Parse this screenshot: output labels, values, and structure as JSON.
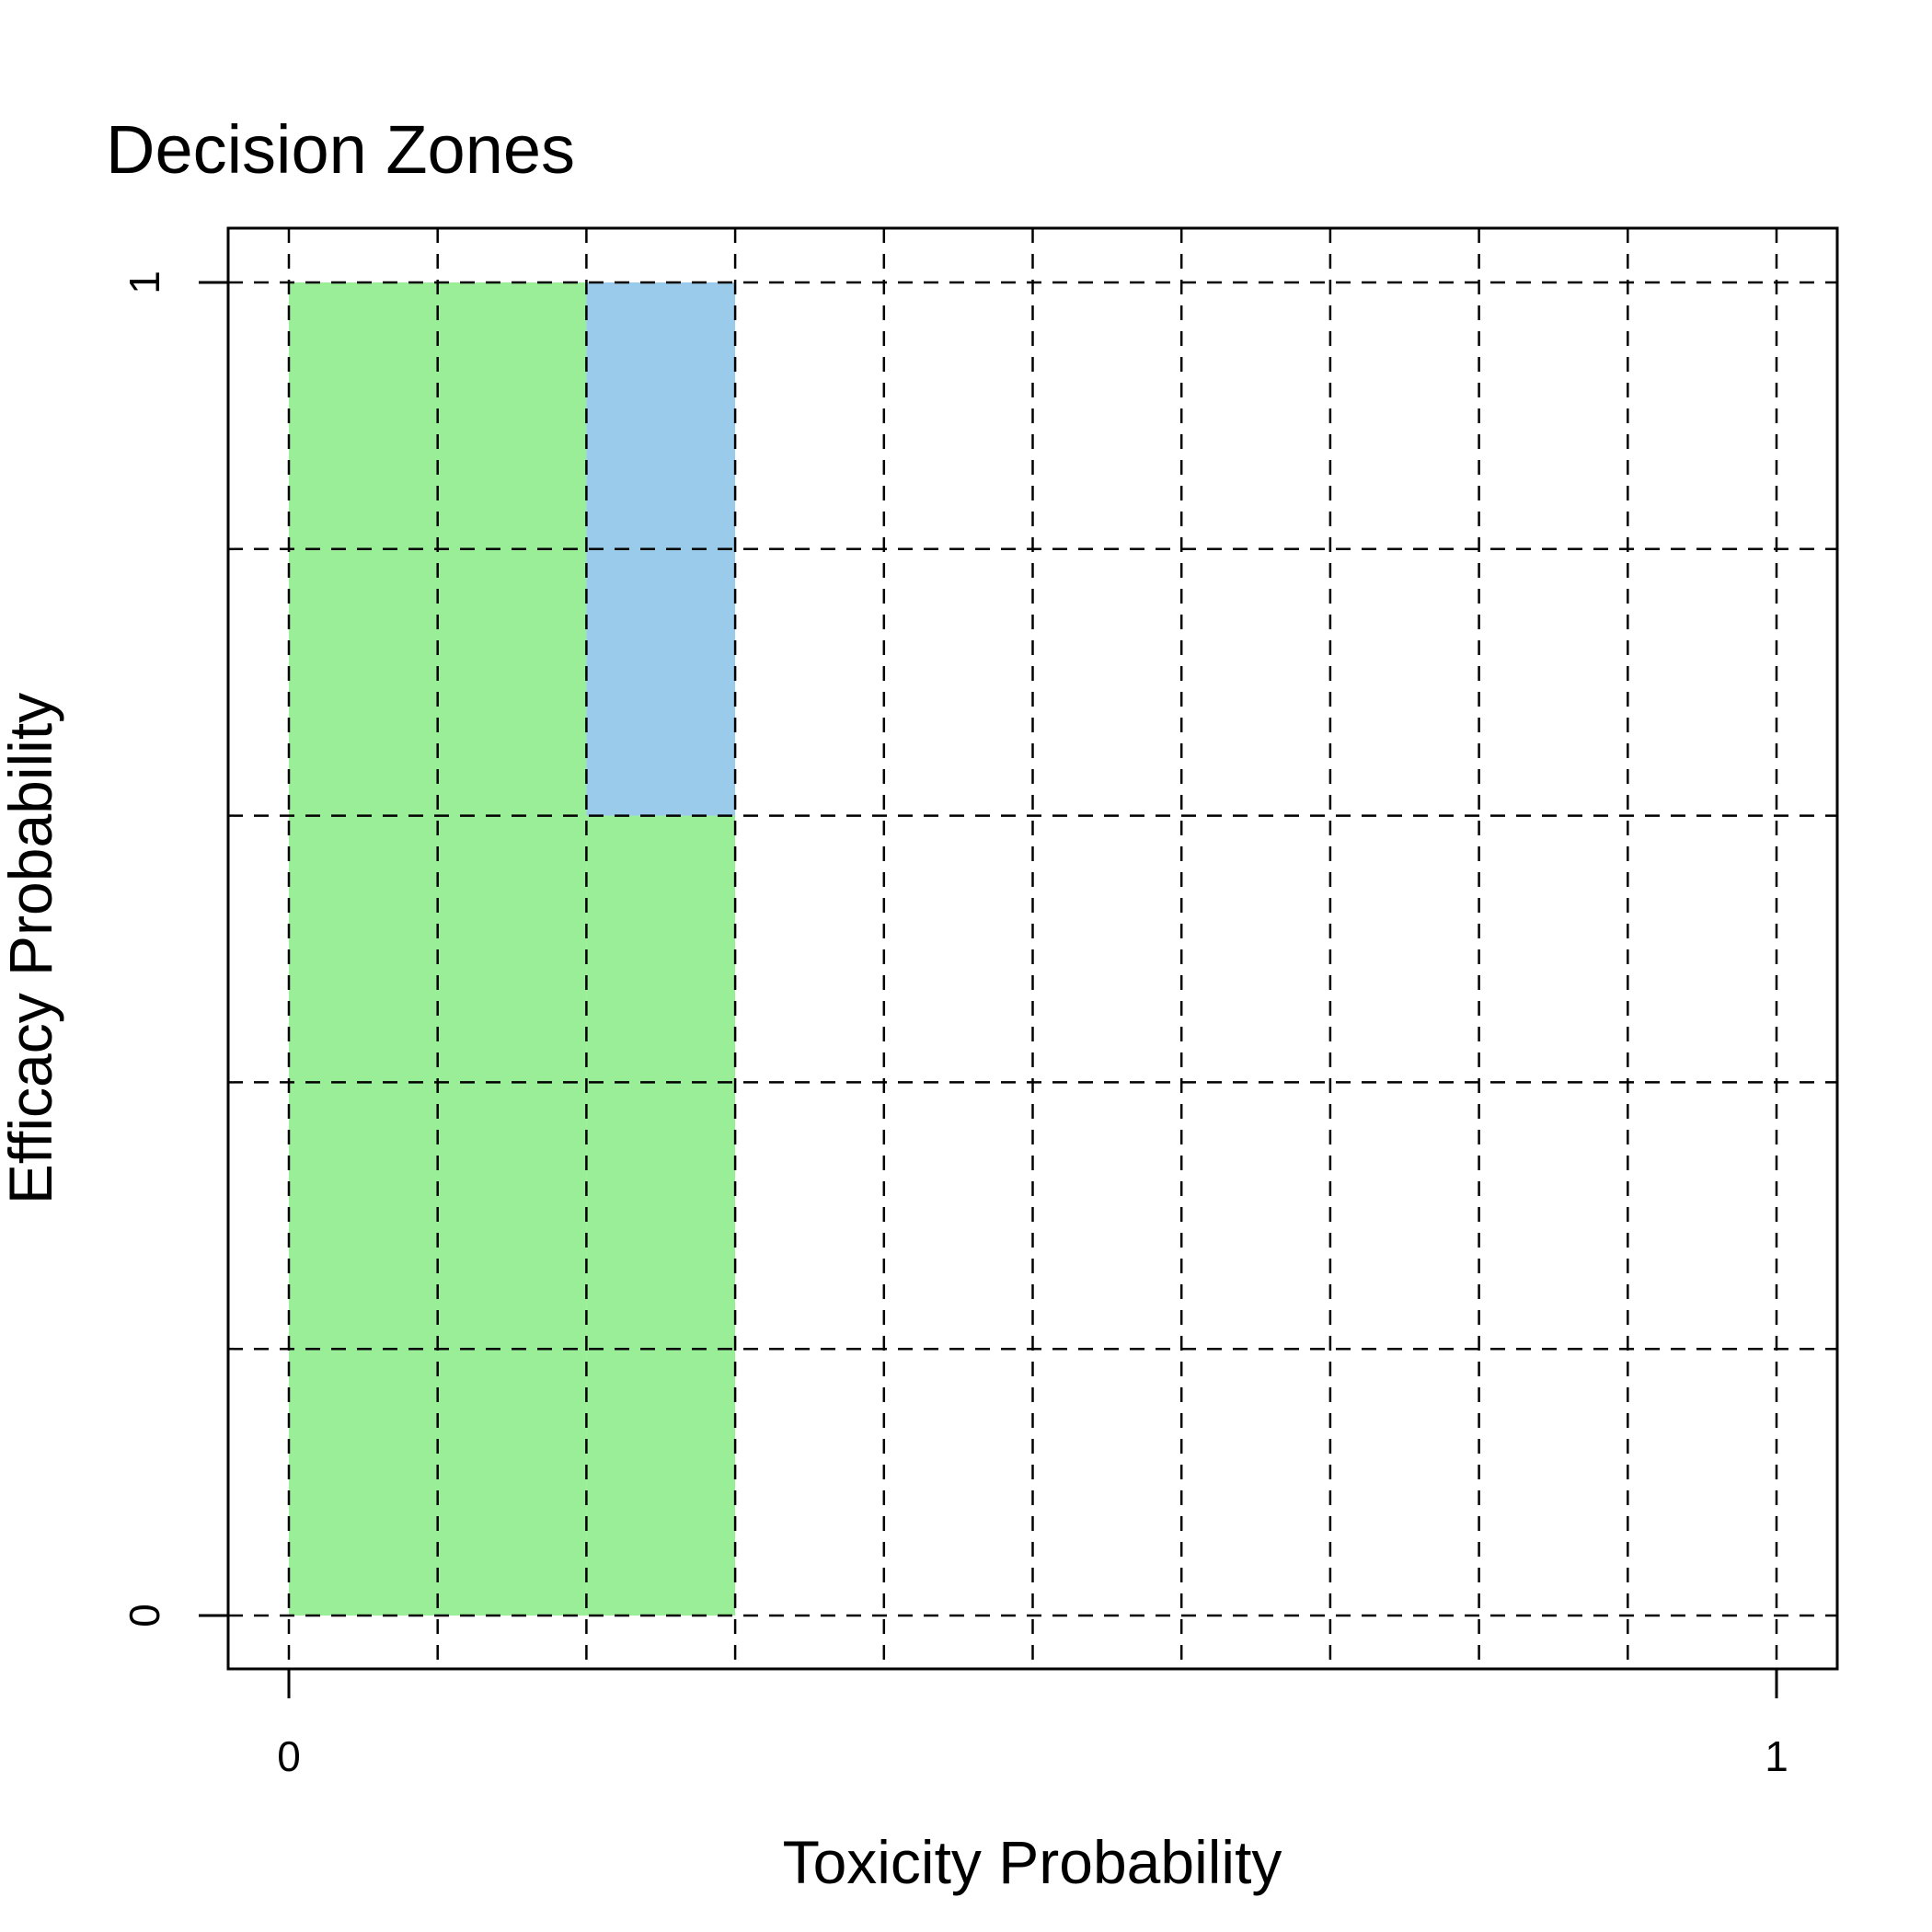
{
  "chart_data": {
    "type": "heatmap",
    "title": "Decision Zones",
    "xlabel": "Toxicity Probability",
    "ylabel": "Efficacy Probability",
    "xlim": [
      0,
      1
    ],
    "ylim": [
      0,
      1
    ],
    "x_tick_labels": [
      {
        "value": 0,
        "label": "0"
      },
      {
        "value": 1,
        "label": "1"
      }
    ],
    "y_tick_labels": [
      {
        "value": 0,
        "label": "0"
      },
      {
        "value": 1,
        "label": "1"
      }
    ],
    "x_grid": [
      0,
      0.1,
      0.2,
      0.3,
      0.4,
      0.5,
      0.6,
      0.7,
      0.8,
      0.9,
      1.0
    ],
    "y_grid": [
      0,
      0.2,
      0.4,
      0.6,
      0.8,
      1.0
    ],
    "grid": true,
    "grid_style": "dashed",
    "zone_colors": {
      "green": "#9AEE98",
      "blue": "#9ACBEA"
    },
    "zones": [
      {
        "x0": 0.0,
        "x1": 0.2,
        "y0": 0.0,
        "y1": 1.0,
        "color": "green"
      },
      {
        "x0": 0.2,
        "x1": 0.3,
        "y0": 0.0,
        "y1": 0.6,
        "color": "green"
      },
      {
        "x0": 0.2,
        "x1": 0.3,
        "y0": 0.6,
        "y1": 1.0,
        "color": "blue"
      }
    ]
  }
}
